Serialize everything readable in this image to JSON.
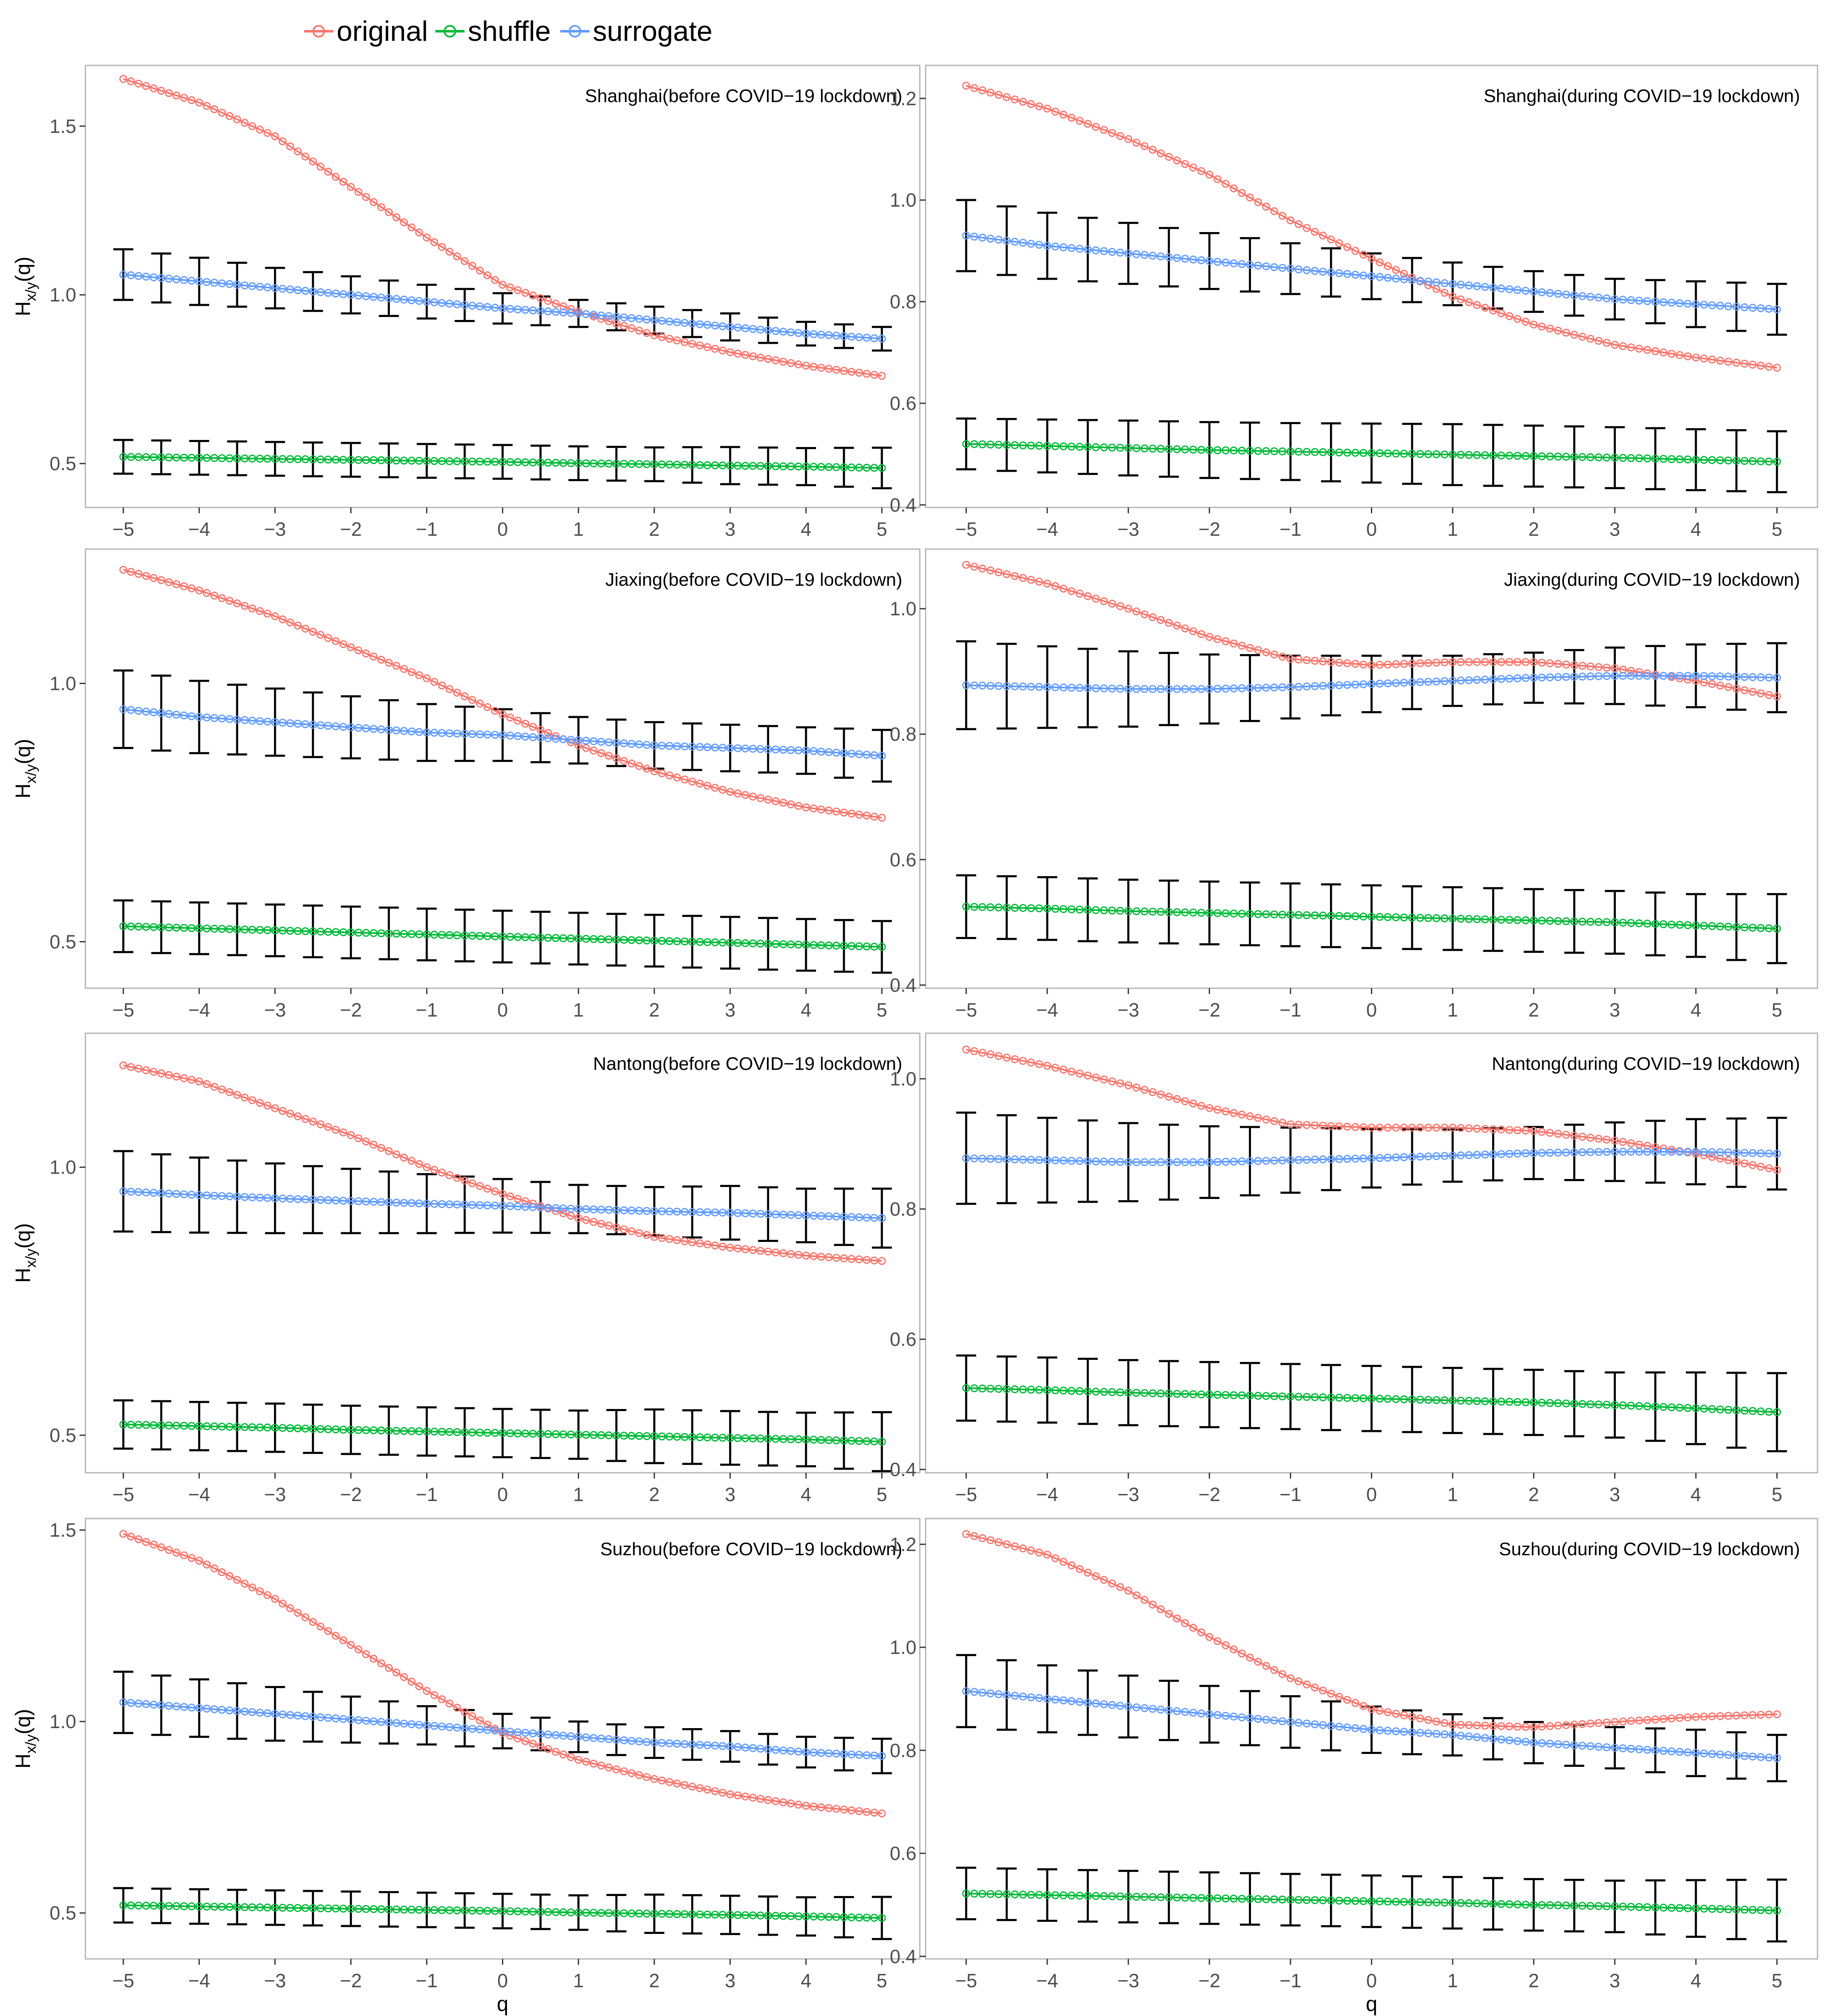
{
  "legend": [
    {
      "name": "original",
      "color": "#F8766D"
    },
    {
      "name": "shuffle",
      "color": "#00BA38"
    },
    {
      "name": "surrogate",
      "color": "#619CFF"
    }
  ],
  "axis_labels": {
    "x": "q",
    "y_main": "H",
    "y_sub": "x/y",
    "y_suffix": "(q)"
  },
  "chart_data": [
    {
      "type": "line",
      "title": "Shanghai(before COVID−19 lockdown)",
      "xlabel": "q",
      "ylabel": "Hx/y(q)",
      "xlim": [
        -5.5,
        5.5
      ],
      "ylim": [
        0.37,
        1.68
      ],
      "x_ticks": [
        -5,
        -4,
        -3,
        -2,
        -1,
        0,
        1,
        2,
        3,
        4,
        5
      ],
      "y_ticks": [
        0.5,
        1.0,
        1.5
      ],
      "y_tick_labels": [
        "0.5",
        "1.0",
        "1.5"
      ],
      "series": [
        {
          "name": "original",
          "values": [
            1.64,
            1.57,
            1.47,
            1.32,
            1.17,
            1.03,
            0.95,
            0.88,
            0.83,
            0.79,
            0.76
          ]
        },
        {
          "name": "shuffle",
          "values": [
            0.52,
            0.517,
            0.514,
            0.511,
            0.508,
            0.505,
            0.501,
            0.498,
            0.494,
            0.491,
            0.487
          ]
        },
        {
          "name": "surrogate",
          "values": [
            1.06,
            1.04,
            1.02,
            1.0,
            0.98,
            0.96,
            0.945,
            0.925,
            0.905,
            0.885,
            0.87
          ]
        }
      ],
      "shuffle_err": [
        0.05,
        0.05,
        0.05,
        0.05,
        0.05,
        0.05,
        0.05,
        0.05,
        0.055,
        0.055,
        0.06
      ],
      "surrogate_err": [
        0.075,
        0.07,
        0.06,
        0.055,
        0.05,
        0.045,
        0.04,
        0.04,
        0.04,
        0.035,
        0.035
      ]
    },
    {
      "type": "line",
      "title": "Shanghai(during COVID−19 lockdown)",
      "xlabel": "q",
      "ylabel": "Hx/y(q)",
      "xlim": [
        -5.5,
        5.5
      ],
      "ylim": [
        0.395,
        1.265
      ],
      "x_ticks": [
        -5,
        -4,
        -3,
        -2,
        -1,
        0,
        1,
        2,
        3,
        4,
        5
      ],
      "y_ticks": [
        0.4,
        0.6,
        0.8,
        1.0,
        1.2
      ],
      "y_tick_labels": [
        "0.4",
        "0.6",
        "0.8",
        "1.0",
        "1.2"
      ],
      "series": [
        {
          "name": "original",
          "values": [
            1.225,
            1.18,
            1.12,
            1.05,
            0.96,
            0.885,
            0.81,
            0.755,
            0.715,
            0.69,
            0.67
          ]
        },
        {
          "name": "shuffle",
          "values": [
            0.52,
            0.516,
            0.512,
            0.508,
            0.505,
            0.502,
            0.499,
            0.496,
            0.493,
            0.489,
            0.485
          ]
        },
        {
          "name": "surrogate",
          "values": [
            0.93,
            0.91,
            0.895,
            0.88,
            0.865,
            0.85,
            0.835,
            0.82,
            0.805,
            0.795,
            0.785
          ]
        }
      ],
      "shuffle_err": [
        0.05,
        0.052,
        0.054,
        0.055,
        0.056,
        0.058,
        0.06,
        0.06,
        0.06,
        0.06,
        0.06
      ],
      "surrogate_err": [
        0.07,
        0.065,
        0.06,
        0.055,
        0.05,
        0.045,
        0.042,
        0.04,
        0.04,
        0.045,
        0.05
      ]
    },
    {
      "type": "line",
      "title": "Jiaxing(before COVID−19 lockdown)",
      "xlabel": "q",
      "ylabel": "Hx/y(q)",
      "xlim": [
        -5.5,
        5.5
      ],
      "ylim": [
        0.41,
        1.26
      ],
      "x_ticks": [
        -5,
        -4,
        -3,
        -2,
        -1,
        0,
        1,
        2,
        3,
        4,
        5
      ],
      "y_ticks": [
        0.5,
        1.0
      ],
      "y_tick_labels": [
        "0.5",
        "1.0"
      ],
      "series": [
        {
          "name": "original",
          "values": [
            1.22,
            1.18,
            1.13,
            1.07,
            1.01,
            0.94,
            0.88,
            0.83,
            0.79,
            0.76,
            0.74
          ]
        },
        {
          "name": "shuffle",
          "values": [
            0.53,
            0.526,
            0.522,
            0.518,
            0.514,
            0.51,
            0.506,
            0.502,
            0.498,
            0.494,
            0.49
          ]
        },
        {
          "name": "surrogate",
          "values": [
            0.95,
            0.935,
            0.925,
            0.915,
            0.905,
            0.9,
            0.89,
            0.88,
            0.875,
            0.87,
            0.86
          ]
        }
      ],
      "shuffle_err": [
        0.05,
        0.05,
        0.05,
        0.05,
        0.05,
        0.05,
        0.05,
        0.05,
        0.05,
        0.05,
        0.05
      ],
      "surrogate_err": [
        0.075,
        0.07,
        0.065,
        0.06,
        0.055,
        0.05,
        0.045,
        0.045,
        0.045,
        0.045,
        0.05
      ]
    },
    {
      "type": "line",
      "title": "Jiaxing(during COVID−19 lockdown)",
      "xlabel": "q",
      "ylabel": "Hx/y(q)",
      "xlim": [
        -5.5,
        5.5
      ],
      "ylim": [
        0.395,
        1.095
      ],
      "x_ticks": [
        -5,
        -4,
        -3,
        -2,
        -1,
        0,
        1,
        2,
        3,
        4,
        5
      ],
      "y_ticks": [
        0.4,
        0.6,
        0.8,
        1.0
      ],
      "y_tick_labels": [
        "0.4",
        "0.6",
        "0.8",
        "1.0"
      ],
      "series": [
        {
          "name": "original",
          "values": [
            1.07,
            1.04,
            1.0,
            0.955,
            0.92,
            0.91,
            0.915,
            0.915,
            0.905,
            0.885,
            0.86
          ]
        },
        {
          "name": "shuffle",
          "values": [
            0.525,
            0.522,
            0.518,
            0.515,
            0.512,
            0.509,
            0.506,
            0.503,
            0.5,
            0.495,
            0.49
          ]
        },
        {
          "name": "surrogate",
          "values": [
            0.878,
            0.875,
            0.872,
            0.872,
            0.875,
            0.88,
            0.885,
            0.89,
            0.893,
            0.893,
            0.89
          ]
        }
      ],
      "shuffle_err": [
        0.05,
        0.05,
        0.05,
        0.05,
        0.05,
        0.05,
        0.05,
        0.05,
        0.05,
        0.05,
        0.055
      ],
      "surrogate_err": [
        0.07,
        0.065,
        0.06,
        0.055,
        0.05,
        0.045,
        0.04,
        0.04,
        0.045,
        0.05,
        0.055
      ]
    },
    {
      "type": "line",
      "title": "Nantong(before COVID−19 lockdown)",
      "xlabel": "q",
      "ylabel": "Hx/y(q)",
      "xlim": [
        -5.5,
        5.5
      ],
      "ylim": [
        0.43,
        1.25
      ],
      "x_ticks": [
        -5,
        -4,
        -3,
        -2,
        -1,
        0,
        1,
        2,
        3,
        4,
        5
      ],
      "y_ticks": [
        0.5,
        1.0
      ],
      "y_tick_labels": [
        "0.5",
        "1.0"
      ],
      "series": [
        {
          "name": "original",
          "values": [
            1.19,
            1.16,
            1.11,
            1.06,
            1.0,
            0.95,
            0.905,
            0.87,
            0.85,
            0.835,
            0.825
          ]
        },
        {
          "name": "shuffle",
          "values": [
            0.52,
            0.517,
            0.514,
            0.51,
            0.507,
            0.504,
            0.501,
            0.498,
            0.495,
            0.492,
            0.488
          ]
        },
        {
          "name": "surrogate",
          "values": [
            0.955,
            0.948,
            0.942,
            0.937,
            0.932,
            0.928,
            0.922,
            0.918,
            0.915,
            0.91,
            0.905
          ]
        }
      ],
      "shuffle_err": [
        0.045,
        0.045,
        0.045,
        0.045,
        0.045,
        0.045,
        0.045,
        0.05,
        0.05,
        0.05,
        0.055
      ],
      "surrogate_err": [
        0.075,
        0.07,
        0.065,
        0.06,
        0.055,
        0.05,
        0.045,
        0.045,
        0.05,
        0.05,
        0.055
      ]
    },
    {
      "type": "line",
      "title": "Nantong(during COVID−19 lockdown)",
      "xlabel": "q",
      "ylabel": "Hx/y(q)",
      "xlim": [
        -5.5,
        5.5
      ],
      "ylim": [
        0.395,
        1.07
      ],
      "x_ticks": [
        -5,
        -4,
        -3,
        -2,
        -1,
        0,
        1,
        2,
        3,
        4,
        5
      ],
      "y_ticks": [
        0.4,
        0.6,
        0.8,
        1.0
      ],
      "y_tick_labels": [
        "0.4",
        "0.6",
        "0.8",
        "1.0"
      ],
      "series": [
        {
          "name": "original",
          "values": [
            1.045,
            1.02,
            0.99,
            0.955,
            0.93,
            0.925,
            0.925,
            0.92,
            0.905,
            0.885,
            0.86
          ]
        },
        {
          "name": "shuffle",
          "values": [
            0.525,
            0.522,
            0.518,
            0.515,
            0.512,
            0.509,
            0.506,
            0.503,
            0.499,
            0.494,
            0.488
          ]
        },
        {
          "name": "surrogate",
          "values": [
            0.878,
            0.875,
            0.872,
            0.872,
            0.875,
            0.878,
            0.882,
            0.886,
            0.888,
            0.888,
            0.885
          ]
        }
      ],
      "shuffle_err": [
        0.05,
        0.05,
        0.05,
        0.05,
        0.05,
        0.05,
        0.05,
        0.05,
        0.05,
        0.055,
        0.06
      ],
      "surrogate_err": [
        0.07,
        0.065,
        0.06,
        0.055,
        0.05,
        0.045,
        0.04,
        0.04,
        0.045,
        0.05,
        0.055
      ]
    },
    {
      "type": "line",
      "title": "Suzhou(before COVID−19 lockdown)",
      "xlabel": "q",
      "ylabel": "Hx/y(q)",
      "xlim": [
        -5.5,
        5.5
      ],
      "ylim": [
        0.38,
        1.53
      ],
      "x_ticks": [
        -5,
        -4,
        -3,
        -2,
        -1,
        0,
        1,
        2,
        3,
        4,
        5
      ],
      "y_ticks": [
        0.5,
        1.0,
        1.5
      ],
      "y_tick_labels": [
        "0.5",
        "1.0",
        "1.5"
      ],
      "series": [
        {
          "name": "original",
          "values": [
            1.49,
            1.42,
            1.32,
            1.2,
            1.08,
            0.97,
            0.9,
            0.85,
            0.81,
            0.78,
            0.76
          ]
        },
        {
          "name": "shuffle",
          "values": [
            0.52,
            0.517,
            0.514,
            0.511,
            0.508,
            0.505,
            0.501,
            0.498,
            0.495,
            0.491,
            0.487
          ]
        },
        {
          "name": "surrogate",
          "values": [
            1.05,
            1.035,
            1.02,
            1.005,
            0.99,
            0.975,
            0.96,
            0.945,
            0.935,
            0.92,
            0.91
          ]
        }
      ],
      "shuffle_err": [
        0.045,
        0.045,
        0.045,
        0.045,
        0.045,
        0.045,
        0.045,
        0.05,
        0.05,
        0.05,
        0.055
      ],
      "surrogate_err": [
        0.08,
        0.075,
        0.07,
        0.06,
        0.05,
        0.045,
        0.04,
        0.04,
        0.04,
        0.04,
        0.045
      ]
    },
    {
      "type": "line",
      "title": "Suzhou(during COVID−19 lockdown)",
      "xlabel": "q",
      "ylabel": "Hx/y(q)",
      "xlim": [
        -5.5,
        5.5
      ],
      "ylim": [
        0.395,
        1.25
      ],
      "x_ticks": [
        -5,
        -4,
        -3,
        -2,
        -1,
        0,
        1,
        2,
        3,
        4,
        5
      ],
      "y_ticks": [
        0.4,
        0.6,
        0.8,
        1.0,
        1.2
      ],
      "y_tick_labels": [
        "0.4",
        "0.6",
        "0.8",
        "1.0",
        "1.2"
      ],
      "series": [
        {
          "name": "original",
          "values": [
            1.22,
            1.18,
            1.11,
            1.02,
            0.94,
            0.88,
            0.85,
            0.845,
            0.855,
            0.865,
            0.87
          ]
        },
        {
          "name": "shuffle",
          "values": [
            0.522,
            0.519,
            0.516,
            0.513,
            0.51,
            0.507,
            0.504,
            0.5,
            0.497,
            0.493,
            0.489
          ]
        },
        {
          "name": "surrogate",
          "values": [
            0.915,
            0.9,
            0.885,
            0.87,
            0.855,
            0.84,
            0.83,
            0.815,
            0.805,
            0.795,
            0.785
          ]
        }
      ],
      "shuffle_err": [
        0.05,
        0.05,
        0.05,
        0.05,
        0.05,
        0.05,
        0.05,
        0.05,
        0.05,
        0.055,
        0.06
      ],
      "surrogate_err": [
        0.07,
        0.065,
        0.06,
        0.055,
        0.05,
        0.045,
        0.04,
        0.04,
        0.04,
        0.045,
        0.045
      ]
    }
  ]
}
